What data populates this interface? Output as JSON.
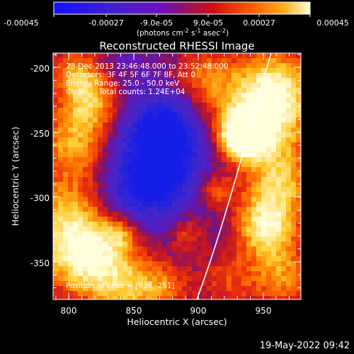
{
  "colorbar": {
    "tick_labels": [
      "-0.00045",
      "-0.00027",
      "-9.0e-05",
      "9.0e-05",
      "0.00027",
      "0.00045"
    ],
    "units_prefix": "(photons cm",
    "units_exp1": "-2",
    "units_mid": " s",
    "units_exp2": "-1",
    "units_mid2": " asec",
    "units_exp3": "-2",
    "units_suffix": ")"
  },
  "plot": {
    "title": "Reconstructed RHESSI Image",
    "xlabel": "Heliocentric X (arcsec)",
    "ylabel": "Heliocentric Y (arcsec)",
    "x_ticks": [
      "800",
      "850",
      "900",
      "950"
    ],
    "y_ticks": [
      "-200",
      "-250",
      "-300",
      "-350"
    ],
    "info_lines": [
      "23-Dec-2013 23:46:48.000 to 23:52:48.000",
      "Detectors: 3F 4F 5F 6F 7F 8F, Att 0",
      "Energy Range: 25.0 - 50.0 keV",
      "Clean     Total counts: 1.24E+04"
    ],
    "peak_label": "Position of Peak = [936,-251]"
  },
  "timestamp": "19-May-2022 09:42"
}
